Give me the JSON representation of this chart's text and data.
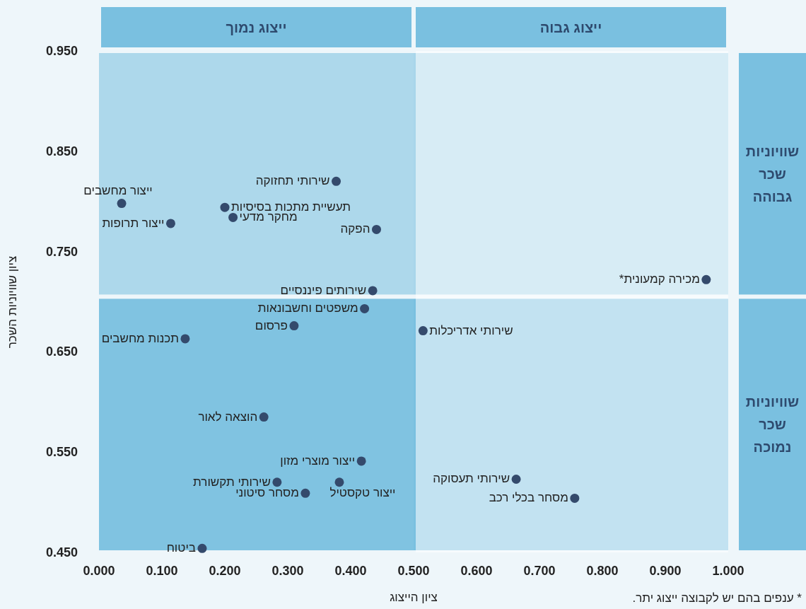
{
  "chart_data": {
    "type": "scatter",
    "xlabel": "ציון הייצוג",
    "ylabel": "ציון שוויוניות השכר",
    "x": [
      0.036,
      0.114,
      0.377,
      0.2,
      0.213,
      0.441,
      0.435,
      0.965,
      0.422,
      0.31,
      0.137,
      0.515,
      0.262,
      0.417,
      0.283,
      0.382,
      0.328,
      0.663,
      0.756,
      0.164
    ],
    "values": [
      0.798,
      0.778,
      0.82,
      0.794,
      0.784,
      0.772,
      0.711,
      0.722,
      0.693,
      0.676,
      0.663,
      0.671,
      0.585,
      0.541,
      0.52,
      0.52,
      0.509,
      0.523,
      0.504,
      0.454
    ],
    "color": "#344a6c",
    "marker": "circle",
    "grid": false,
    "xlim": [
      0,
      1.0
    ],
    "ylim": [
      0.45,
      0.95
    ],
    "xticks": [
      {
        "value": 0,
        "label": "0.000"
      },
      {
        "value": 0.1,
        "label": "0.100"
      },
      {
        "value": 0.2,
        "label": "0.200"
      },
      {
        "value": 0.3,
        "label": "0.300"
      },
      {
        "value": 0.4,
        "label": "0.400"
      },
      {
        "value": 0.5,
        "label": "0.500"
      },
      {
        "value": 0.6,
        "label": "0.600"
      },
      {
        "value": 0.7,
        "label": "0.700"
      },
      {
        "value": 0.8,
        "label": "0.800"
      },
      {
        "value": 0.9,
        "label": "0.900"
      },
      {
        "value": 1.0,
        "label": "1.000"
      }
    ],
    "yticks": [
      {
        "value": 0.45,
        "label": "0.450"
      },
      {
        "value": 0.55,
        "label": "0.550"
      },
      {
        "value": 0.65,
        "label": "0.650"
      },
      {
        "value": 0.75,
        "label": "0.750"
      },
      {
        "value": 0.85,
        "label": "0.850"
      },
      {
        "value": 0.95,
        "label": "0.950"
      }
    ],
    "bands": [
      {
        "axis": "x",
        "from": 0,
        "to": 0.5,
        "label": "ייצוג נמוך"
      },
      {
        "axis": "x",
        "from": 0.5,
        "to": 1.0,
        "label": "ייצוג גבוה"
      },
      {
        "axis": "y",
        "from": 0.705,
        "to": 0.95,
        "label": "שוויוניות שכר גבוהה"
      },
      {
        "axis": "y",
        "from": 0.45,
        "to": 0.705,
        "label": "שוויוניות שכר נמוכה"
      }
    ],
    "annotations": [
      {
        "text": "ייצור מחשבים",
        "x": 0.036,
        "y": 0.798
      },
      {
        "text": "ייצור תרופות",
        "x": 0.114,
        "y": 0.778
      },
      {
        "text": "שירותי תחזוקה",
        "x": 0.377,
        "y": 0.82
      },
      {
        "text": "תעשיית מתכות בסיסיות",
        "x": 0.2,
        "y": 0.794
      },
      {
        "text": "מחקר מדעי",
        "x": 0.213,
        "y": 0.784
      },
      {
        "text": "הפקה",
        "x": 0.441,
        "y": 0.772
      },
      {
        "text": "שירותים פיננסיים",
        "x": 0.435,
        "y": 0.711
      },
      {
        "text": "מכירה קמעונית*",
        "x": 0.965,
        "y": 0.722
      },
      {
        "text": "משפטים וחשבונאות",
        "x": 0.422,
        "y": 0.693
      },
      {
        "text": "פרסום",
        "x": 0.31,
        "y": 0.676
      },
      {
        "text": "תכנות מחשבים",
        "x": 0.137,
        "y": 0.663
      },
      {
        "text": "שירותי אדריכלות",
        "x": 0.515,
        "y": 0.671
      },
      {
        "text": "הוצאה לאור",
        "x": 0.262,
        "y": 0.585
      },
      {
        "text": "ייצור מוצרי מזון",
        "x": 0.417,
        "y": 0.541
      },
      {
        "text": "שירותי תקשורת",
        "x": 0.283,
        "y": 0.52
      },
      {
        "text": "ייצור טקסטיל",
        "x": 0.382,
        "y": 0.52
      },
      {
        "text": "מסחר סיטוני",
        "x": 0.328,
        "y": 0.509
      },
      {
        "text": "שירותי תעסוקה",
        "x": 0.663,
        "y": 0.523
      },
      {
        "text": "מסחר בכלי רכב",
        "x": 0.756,
        "y": 0.504
      },
      {
        "text": "ביטוח",
        "x": 0.164,
        "y": 0.454
      },
      "* ענפים בהם יש לקבוצה ייצוג יתר."
    ]
  }
}
